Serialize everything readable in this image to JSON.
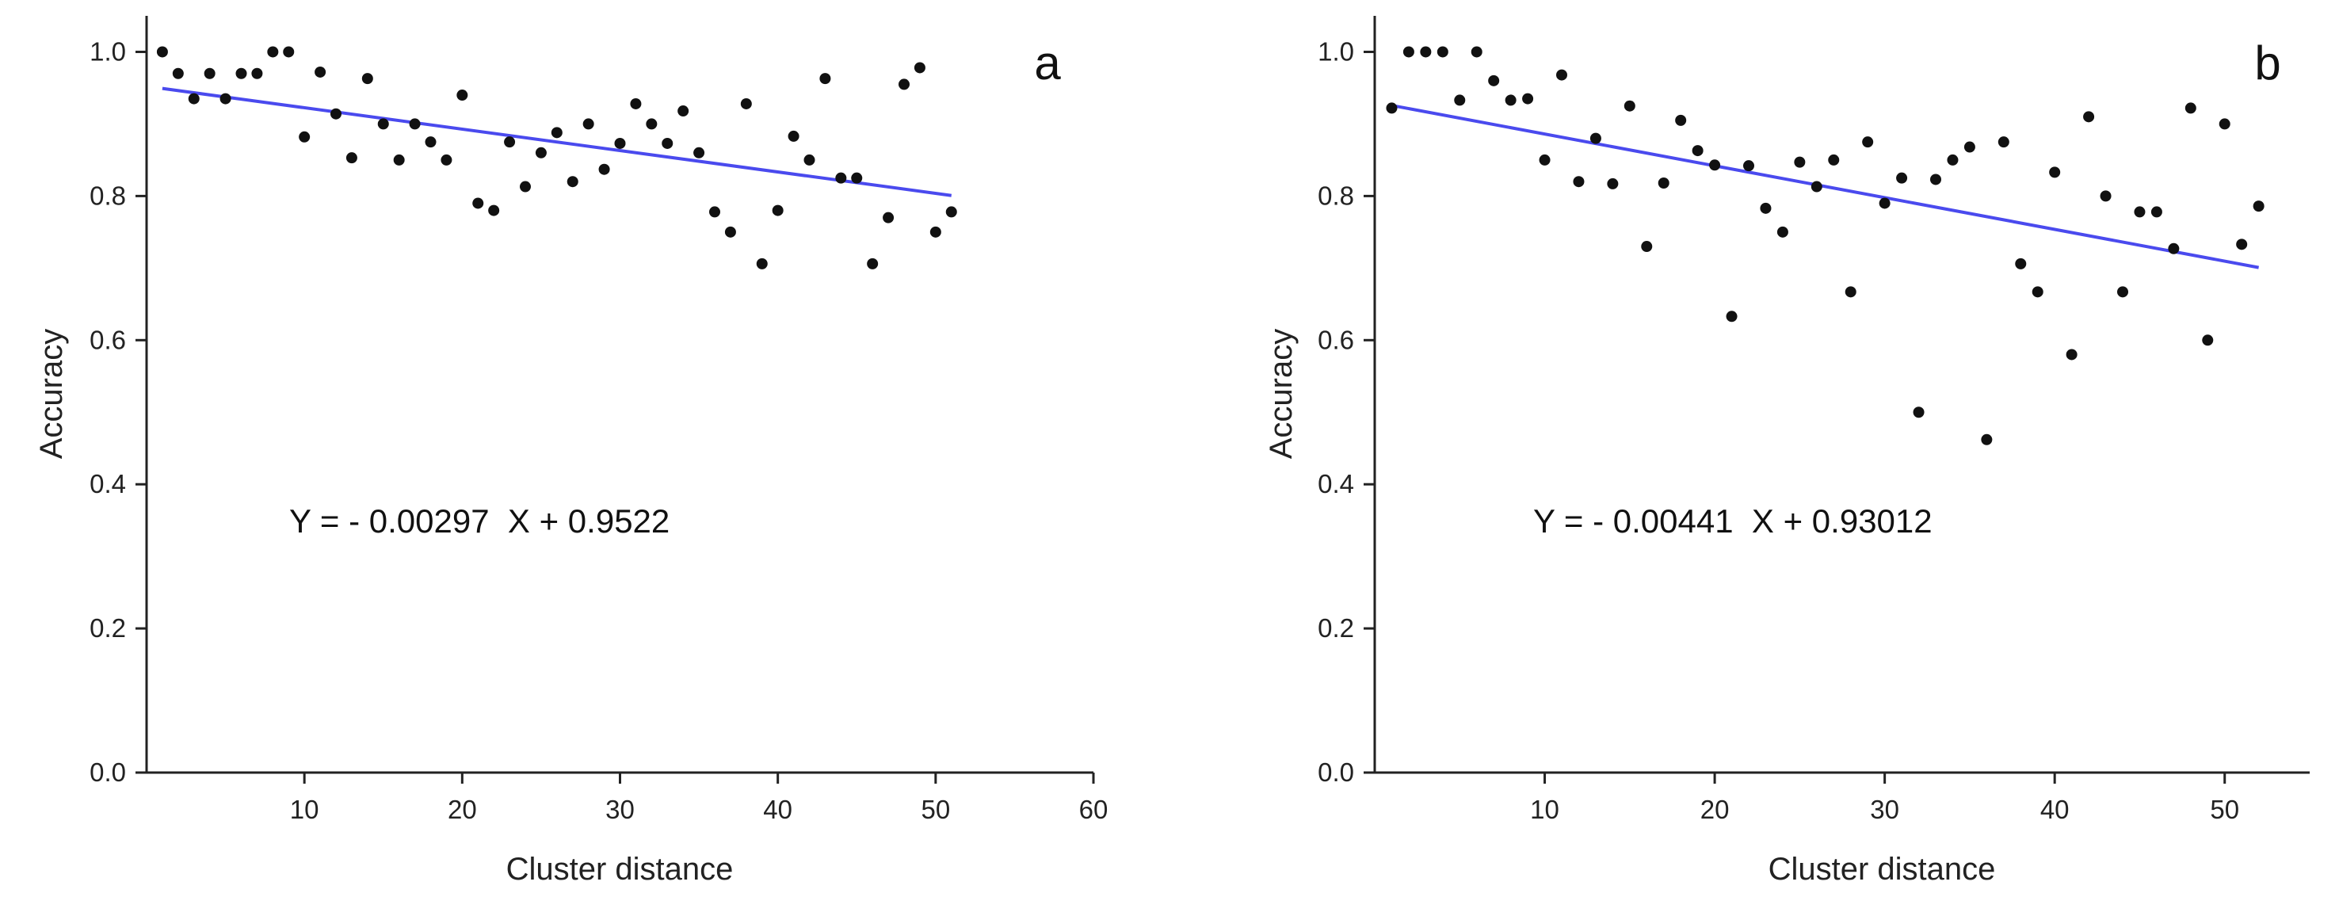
{
  "chart_data": [
    {
      "type": "scatter",
      "panel_label": "a",
      "xlabel": "Cluster distance",
      "ylabel": "Accuracy",
      "xlim": [
        0,
        60
      ],
      "ylim": [
        0,
        1.05
      ],
      "xticks": [
        10,
        20,
        30,
        40,
        50,
        60
      ],
      "xtick_labels": [
        "10",
        "20",
        "30",
        "40",
        "50",
        "60"
      ],
      "yticks": [
        0.0,
        0.2,
        0.4,
        0.6,
        0.8,
        1.0
      ],
      "ytick_labels": [
        "0.0",
        "0.2",
        "0.4",
        "0.6",
        "0.8",
        "1.0"
      ],
      "fit_label": "Y = - 0.00297  X + 0.9522",
      "fit": {
        "slope": -0.00297,
        "intercept": 0.9522,
        "x_range": [
          1,
          51
        ]
      },
      "fit_color": "#4a4aee",
      "point_color": "#111111",
      "x": [
        1,
        2,
        3,
        4,
        5,
        6,
        7,
        8,
        9,
        10,
        11,
        12,
        13,
        14,
        15,
        16,
        17,
        18,
        19,
        20,
        21,
        22,
        23,
        24,
        25,
        26,
        27,
        28,
        29,
        30,
        31,
        32,
        33,
        34,
        35,
        36,
        37,
        38,
        39,
        40,
        41,
        42,
        43,
        44,
        45,
        46,
        47,
        48,
        49,
        50,
        51
      ],
      "y": [
        1.0,
        0.97,
        0.935,
        0.97,
        0.935,
        0.97,
        0.97,
        1.0,
        1.0,
        0.882,
        0.972,
        0.914,
        0.853,
        0.963,
        0.9,
        0.85,
        0.9,
        0.875,
        0.85,
        0.94,
        0.79,
        0.78,
        0.875,
        0.813,
        0.86,
        0.888,
        0.82,
        0.9,
        0.837,
        0.873,
        0.928,
        0.9,
        0.873,
        0.918,
        0.86,
        0.778,
        0.75,
        0.928,
        0.706,
        0.78,
        0.883,
        0.85,
        0.963,
        0.825,
        0.825,
        0.706,
        0.77,
        0.955,
        0.978,
        0.75,
        0.778
      ]
    },
    {
      "type": "scatter",
      "panel_label": "b",
      "xlabel": "Cluster distance",
      "ylabel": "Accuracy",
      "xlim": [
        0,
        55
      ],
      "ylim": [
        0,
        1.05
      ],
      "xticks": [
        10,
        20,
        30,
        40,
        50
      ],
      "xtick_labels": [
        "10",
        "20",
        "30",
        "40",
        "50"
      ],
      "yticks": [
        0.0,
        0.2,
        0.4,
        0.6,
        0.8,
        1.0
      ],
      "ytick_labels": [
        "0.0",
        "0.2",
        "0.4",
        "0.6",
        "0.8",
        "1.0"
      ],
      "fit_label": "Y = - 0.00441  X + 0.93012",
      "fit": {
        "slope": -0.00441,
        "intercept": 0.93012,
        "x_range": [
          1,
          52
        ]
      },
      "fit_color": "#4a4aee",
      "point_color": "#111111",
      "x": [
        1,
        2,
        3,
        4,
        5,
        6,
        7,
        8,
        9,
        10,
        11,
        12,
        13,
        14,
        15,
        16,
        17,
        18,
        19,
        20,
        21,
        22,
        23,
        24,
        25,
        26,
        27,
        28,
        29,
        30,
        31,
        32,
        33,
        34,
        35,
        36,
        37,
        38,
        39,
        40,
        41,
        42,
        43,
        44,
        45,
        46,
        47,
        48,
        49,
        50,
        51,
        52
      ],
      "y": [
        0.922,
        1.0,
        1.0,
        1.0,
        0.933,
        1.0,
        0.96,
        0.933,
        0.935,
        0.85,
        0.968,
        0.82,
        0.88,
        0.817,
        0.925,
        0.73,
        0.818,
        0.905,
        0.863,
        0.843,
        0.633,
        0.842,
        0.783,
        0.75,
        0.847,
        0.813,
        0.85,
        0.667,
        0.875,
        0.79,
        0.825,
        0.5,
        0.823,
        0.85,
        0.868,
        0.462,
        0.875,
        0.706,
        0.667,
        0.833,
        0.58,
        0.91,
        0.8,
        0.667,
        0.778,
        0.778,
        0.727,
        0.922,
        0.6,
        0.9,
        0.733,
        0.786
      ]
    }
  ]
}
